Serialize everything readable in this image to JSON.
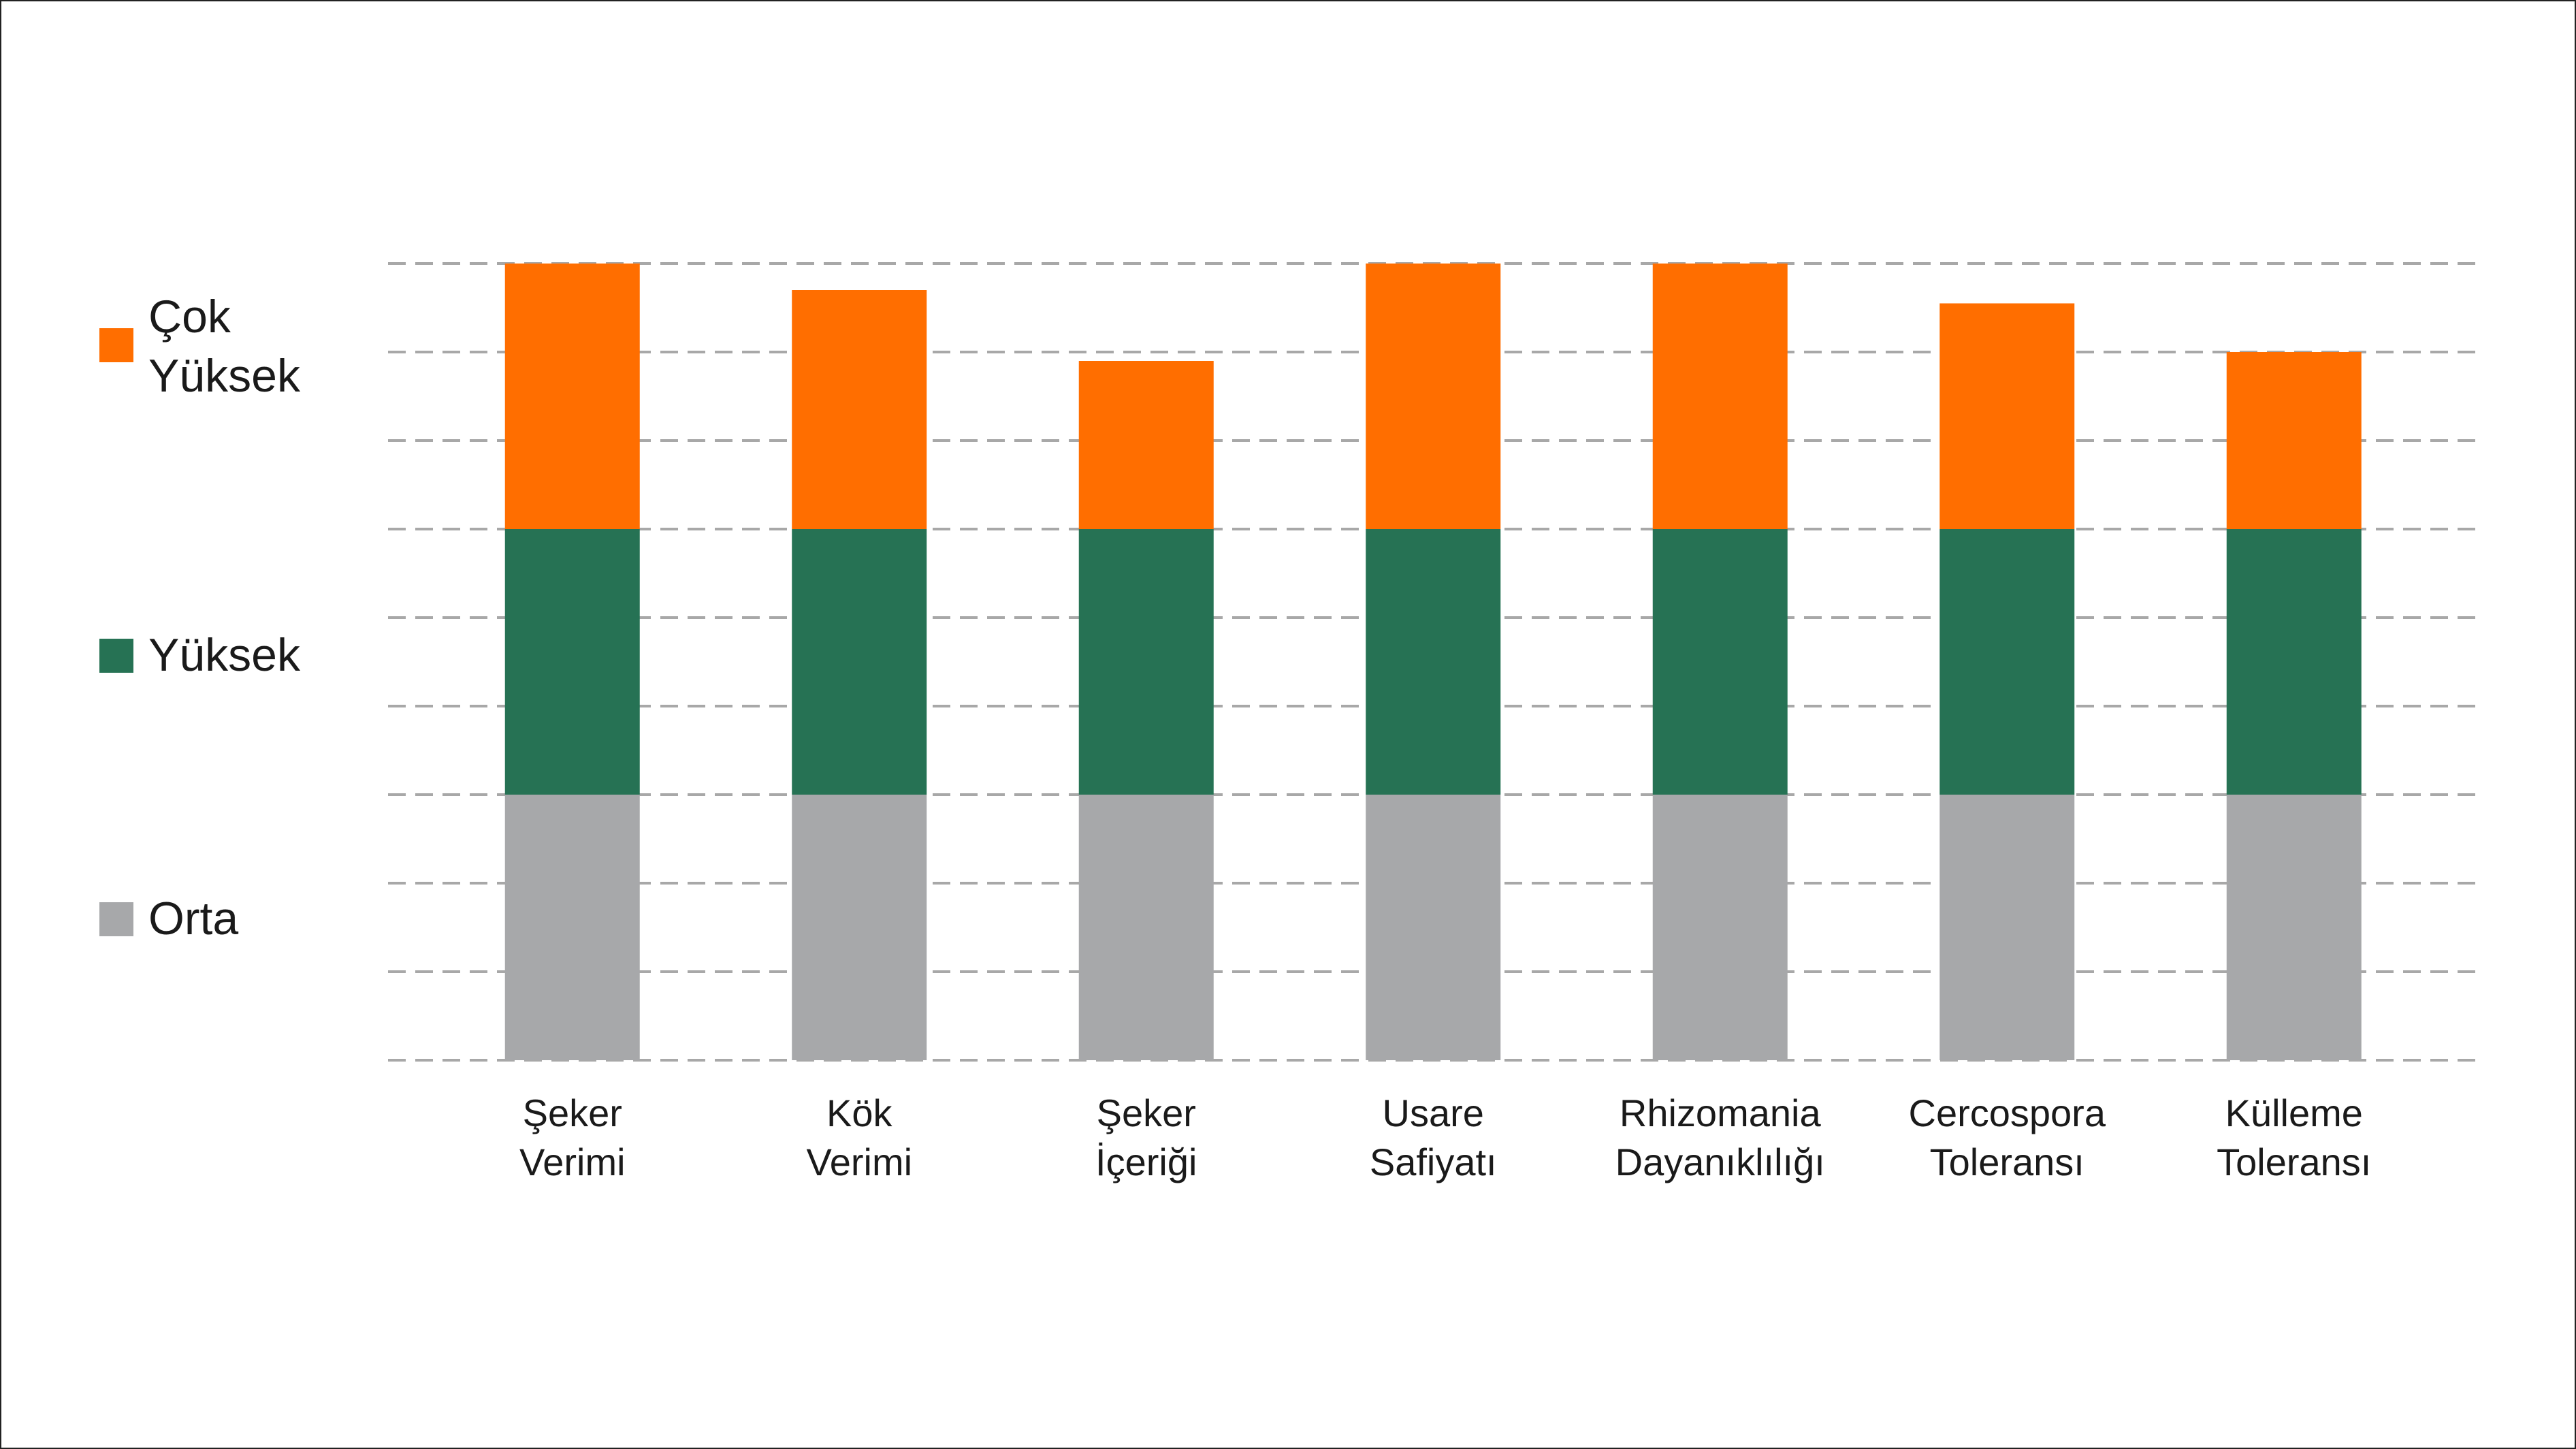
{
  "chart_data": {
    "type": "bar",
    "stacked": true,
    "categories": [
      [
        "Şeker",
        "Verimi"
      ],
      [
        "Kök",
        "Verimi"
      ],
      [
        "Şeker",
        "İçeriği"
      ],
      [
        "Usare",
        "Safiyatı"
      ],
      [
        "Rhizomania",
        "Dayanıklılığı"
      ],
      [
        "Cercospora",
        "Toleransı"
      ],
      [
        "Külleme",
        "Toleransı"
      ]
    ],
    "series": [
      {
        "name": "Orta",
        "color": "#a7a8aa",
        "values": [
          3,
          3,
          3,
          3,
          3,
          3,
          3
        ]
      },
      {
        "name": "Yüksek",
        "color": "#267254",
        "values": [
          3,
          3,
          3,
          3,
          3,
          3,
          3
        ]
      },
      {
        "name": "Çok Yüksek",
        "color": "#ff6e00",
        "values": [
          3,
          2.7,
          1.9,
          3,
          3,
          2.55,
          2
        ]
      }
    ],
    "legend": {
      "position": "left",
      "entries": [
        {
          "lines": [
            "Çok",
            "Yüksek"
          ],
          "color": "#ff6e00"
        },
        {
          "lines": [
            "Yüksek"
          ],
          "color": "#267254"
        },
        {
          "lines": [
            "Orta"
          ],
          "color": "#a7a8aa"
        }
      ]
    },
    "ylim": [
      0,
      9
    ],
    "grid": {
      "on": true,
      "style": "dashed",
      "color": "#a8a8a8"
    },
    "title": "",
    "xlabel": "",
    "ylabel": ""
  }
}
